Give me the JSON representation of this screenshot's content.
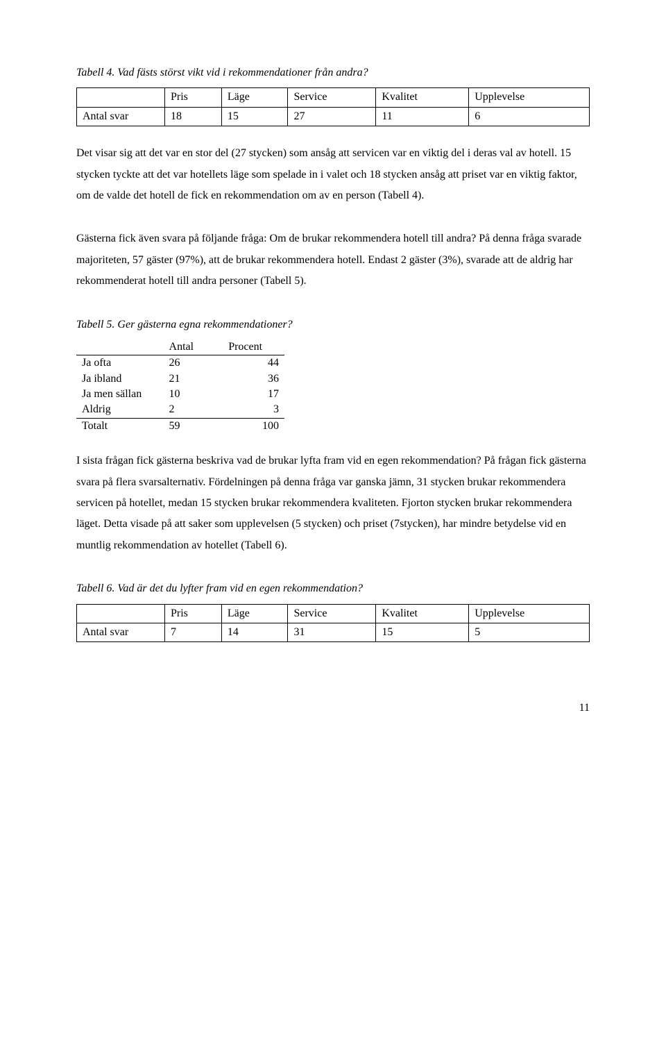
{
  "table4": {
    "caption": "Tabell 4. Vad fästs störst vikt vid i rekommendationer från andra?",
    "headers": [
      "",
      "Pris",
      "Läge",
      "Service",
      "Kvalitet",
      "Upplevelse"
    ],
    "row_label": "Antal svar",
    "values": [
      "18",
      "15",
      "27",
      "11",
      "6"
    ]
  },
  "para1": "Det visar sig att det var en stor del (27 stycken) som ansåg att servicen var en viktig del i deras val av hotell. 15 stycken tyckte att det var hotellets läge som spelade in i valet och 18 stycken ansåg att priset var en viktig faktor, om de valde det hotell de fick en rekommendation om av en person (Tabell 4).",
  "para2": "Gästerna fick även svara på följande fråga: Om de brukar rekommendera hotell till andra? På denna fråga svarade majoriteten, 57 gäster (97%), att de brukar rekommendera hotell. Endast 2 gäster (3%), svarade att de aldrig har rekommenderat hotell till andra personer (Tabell 5).",
  "table5": {
    "caption": "Tabell 5. Ger gästerna egna rekommendationer?",
    "col_headers": [
      "",
      "Antal",
      "Procent"
    ],
    "rows": [
      [
        "Ja ofta",
        "26",
        "44"
      ],
      [
        "Ja ibland",
        "21",
        "36"
      ],
      [
        "Ja men sällan",
        "10",
        "17"
      ],
      [
        "Aldrig",
        "2",
        "3"
      ]
    ],
    "total_row": [
      "Totalt",
      "59",
      "100"
    ]
  },
  "para3": "I sista frågan fick gästerna beskriva vad de brukar lyfta fram vid en egen rekommendation? På frågan fick gästerna svara på flera svarsalternativ. Fördelningen på denna fråga var ganska jämn, 31 stycken brukar rekommendera servicen på hotellet, medan 15 stycken brukar rekommendera kvaliteten. Fjorton stycken brukar rekommendera läget. Detta visade på att saker som upplevelsen (5 stycken) och priset (7stycken), har mindre betydelse vid en muntlig rekommendation av hotellet (Tabell 6).",
  "table6": {
    "caption": "Tabell 6. Vad är det du lyfter fram vid en egen rekommendation?",
    "headers": [
      "",
      "Pris",
      "Läge",
      "Service",
      "Kvalitet",
      "Upplevelse"
    ],
    "row_label": "Antal svar",
    "values": [
      "7",
      "14",
      "31",
      "15",
      "5"
    ]
  },
  "page_number": "11"
}
